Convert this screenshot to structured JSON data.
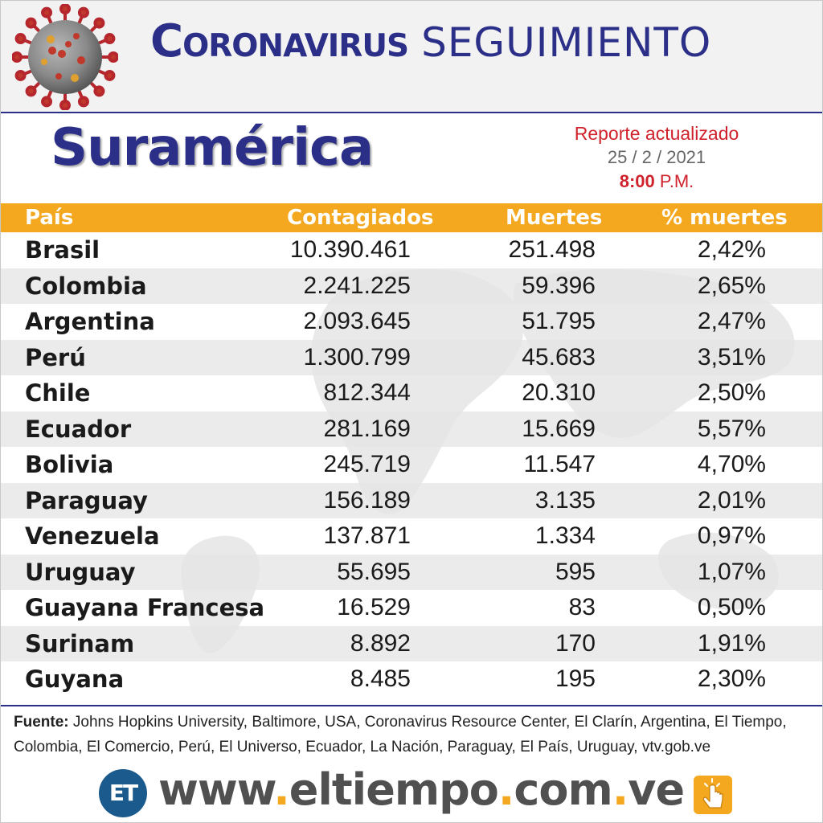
{
  "header": {
    "title_main": "Coronavirus",
    "title_sub": "SEGUIMIENTO",
    "icon": "coronavirus-icon"
  },
  "region": "Suramérica",
  "report": {
    "label": "Reporte actualizado",
    "date": "25 / 2 / 2021",
    "time": "8:00",
    "ampm": "P.M."
  },
  "colors": {
    "brand_blue": "#2b2f88",
    "header_orange": "#f4a81f",
    "accent_red": "#d0222c"
  },
  "chart_data": {
    "type": "table",
    "columns": [
      "País",
      "Contagiados",
      "Muertes",
      "% muertes"
    ],
    "rows": [
      [
        "Brasil",
        "10.390.461",
        "251.498",
        "2,42%"
      ],
      [
        "Colombia",
        "2.241.225",
        "59.396",
        "2,65%"
      ],
      [
        "Argentina",
        "2.093.645",
        "51.795",
        "2,47%"
      ],
      [
        "Perú",
        "1.300.799",
        "45.683",
        "3,51%"
      ],
      [
        "Chile",
        "812.344",
        "20.310",
        "2,50%"
      ],
      [
        "Ecuador",
        "281.169",
        "15.669",
        "5,57%"
      ],
      [
        "Bolivia",
        "245.719",
        "11.547",
        "4,70%"
      ],
      [
        "Paraguay",
        "156.189",
        "3.135",
        "2,01%"
      ],
      [
        "Venezuela",
        "137.871",
        "1.334",
        "0,97%"
      ],
      [
        "Uruguay",
        "55.695",
        "595",
        "1,07%"
      ],
      [
        "Guayana Francesa",
        "16.529",
        "83",
        "0,50%"
      ],
      [
        "Surinam",
        "8.892",
        "170",
        "1,91%"
      ],
      [
        "Guyana",
        "8.485",
        "195",
        "2,30%"
      ]
    ]
  },
  "source": {
    "label": "Fuente:",
    "text": "Johns Hopkins University, Baltimore, USA, Coronavirus Resource Center,  El Clarín, Argentina, El Tiempo, Colombia, El Comercio, Perú, El Universo, Ecuador, La Nación, Paraguay, El País, Uruguay, vtv.gob.ve"
  },
  "footer": {
    "logo": "ET",
    "url_parts": [
      "www",
      "eltiempo",
      "com",
      "ve"
    ],
    "click_icon": "click-hand-icon"
  }
}
